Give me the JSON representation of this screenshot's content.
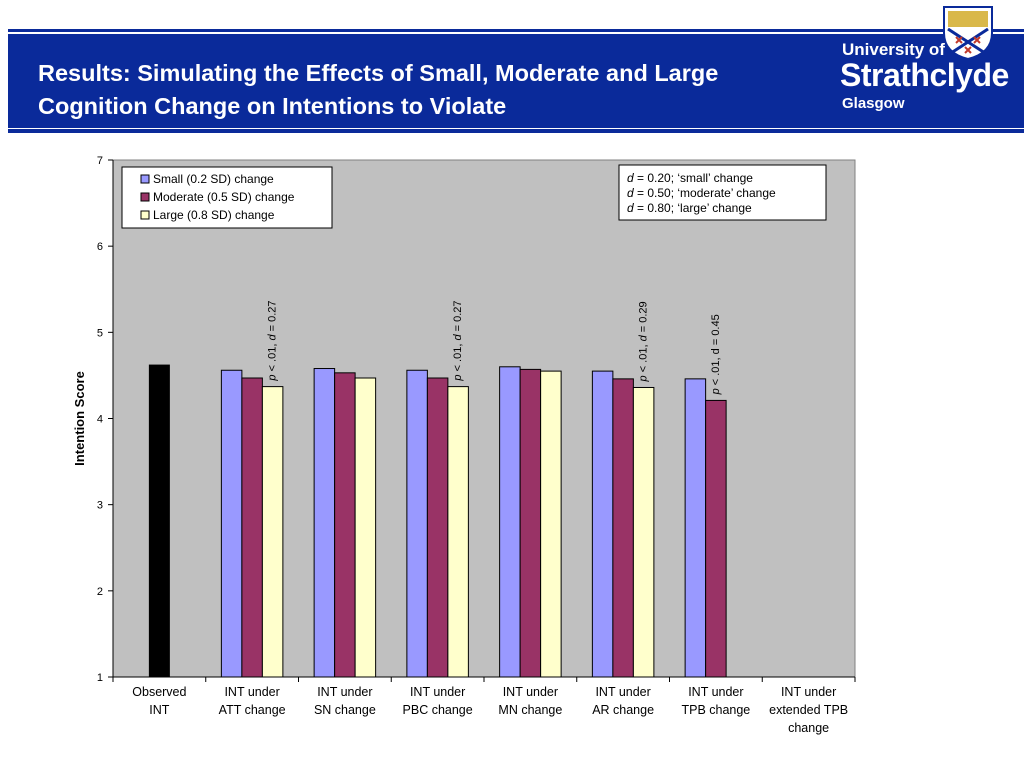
{
  "slide": {
    "title": "Results: Simulating the Effects of Small, Moderate and Large Cognition Change on Intentions to Violate"
  },
  "logo": {
    "line1": "University of",
    "line2": "Strathclyde",
    "line3": "Glasgow"
  },
  "colors": {
    "title_bar": "#0a2a9a",
    "plot_bg": "#c0c0c0",
    "observed": "#000000",
    "small": "#9999ff",
    "moderate": "#993366",
    "large": "#ffffcc"
  },
  "chart_data": {
    "type": "bar",
    "ylabel": "Intention Score",
    "xlabel": "",
    "ylim": [
      1,
      7
    ],
    "yticks": [
      1,
      2,
      3,
      4,
      5,
      6,
      7
    ],
    "grid": false,
    "legend_position": "top-left",
    "categories": [
      [
        "Observed",
        "INT"
      ],
      [
        "INT under",
        "ATT change"
      ],
      [
        "INT under",
        "SN change"
      ],
      [
        "INT under",
        "PBC change"
      ],
      [
        "INT under",
        "MN change"
      ],
      [
        "INT under",
        "AR change"
      ],
      [
        "INT under",
        "TPB change"
      ],
      [
        "INT under",
        "extended TPB",
        "change"
      ]
    ],
    "observed": {
      "category_index": 0,
      "value": 4.62
    },
    "series": [
      {
        "name": "Small (0.2 SD) change",
        "values": [
          null,
          4.56,
          4.58,
          4.56,
          4.6,
          4.55,
          4.46,
          null
        ]
      },
      {
        "name": "Moderate (0.5 SD) change",
        "values": [
          null,
          4.47,
          4.53,
          4.47,
          4.57,
          4.46,
          4.21,
          null
        ]
      },
      {
        "name": "Large (0.8 SD) change",
        "values": [
          null,
          4.37,
          4.47,
          4.37,
          4.55,
          4.36,
          null,
          null
        ]
      }
    ],
    "annotations": [
      {
        "category_index": 1,
        "p": "p",
        "rest1": " < .01, ",
        "d": "d",
        "rest2": " = 0.27"
      },
      {
        "category_index": 3,
        "p": "p",
        "rest1": " < .01, ",
        "d": "d",
        "rest2": " = 0.27"
      },
      {
        "category_index": 5,
        "p": "p",
        "rest1": " < .01, ",
        "d": "d",
        "rest2": " = 0.29"
      },
      {
        "category_index": 6,
        "p": "p",
        "rest1": " < .01, d = 0.45",
        "d": "",
        "rest2": ""
      }
    ],
    "effect_size_box": [
      {
        "d": "d",
        "text": " = 0.20; ‘small’ change"
      },
      {
        "d": "d",
        "text": " = 0.50; ‘moderate’ change"
      },
      {
        "d": "d",
        "text": " = 0.80; ‘large’ change"
      }
    ]
  }
}
